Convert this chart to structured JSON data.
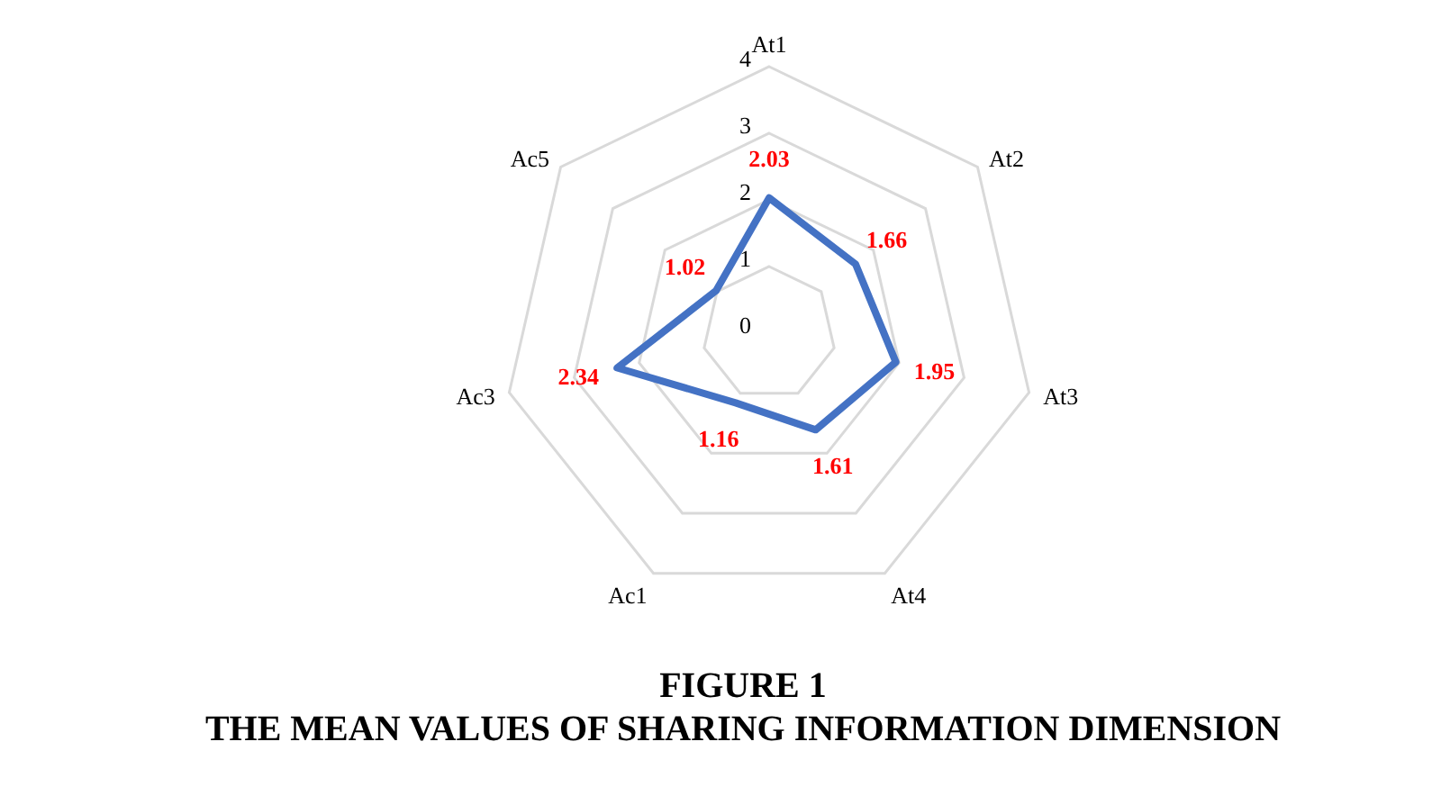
{
  "chart_data": {
    "type": "radar",
    "title": "FIGURE 1",
    "subtitle": "THE MEAN VALUES OF SHARING INFORMATION DIMENSION",
    "categories": [
      "At1",
      "At2",
      "At3",
      "At4",
      "Ac1",
      "Ac3",
      "Ac5"
    ],
    "series": [
      {
        "color": "#4472c4",
        "values": [
          2.03,
          1.66,
          1.95,
          1.61,
          1.16,
          2.34,
          1.02
        ]
      }
    ],
    "ylim": [
      0,
      4
    ],
    "yticks": [
      0,
      1,
      2,
      3,
      4
    ],
    "grid": true,
    "marker": "none",
    "data_labels": true,
    "legend": false
  }
}
